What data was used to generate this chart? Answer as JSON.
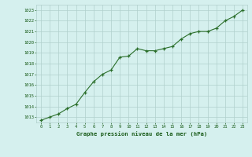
{
  "x": [
    0,
    1,
    2,
    3,
    4,
    5,
    6,
    7,
    8,
    9,
    10,
    11,
    12,
    13,
    14,
    15,
    16,
    17,
    18,
    19,
    20,
    21,
    22,
    23
  ],
  "y": [
    1012.7,
    1013.0,
    1013.3,
    1013.8,
    1014.2,
    1015.3,
    1016.3,
    1017.0,
    1017.4,
    1018.6,
    1018.7,
    1019.4,
    1019.2,
    1019.2,
    1019.4,
    1019.6,
    1020.3,
    1020.8,
    1021.0,
    1021.0,
    1021.3,
    1022.0,
    1022.4,
    1023.0
  ],
  "line_color": "#2a6e2a",
  "marker_color": "#2a6e2a",
  "bg_color": "#d5f0ee",
  "grid_color": "#b0d0cc",
  "text_color": "#1a5c1a",
  "title": "Graphe pression niveau de la mer (hPa)",
  "ylim_min": 1012.5,
  "ylim_max": 1023.5,
  "xlim_min": -0.5,
  "xlim_max": 23.5,
  "yticks": [
    1013,
    1014,
    1015,
    1016,
    1017,
    1018,
    1019,
    1020,
    1021,
    1022,
    1023
  ],
  "xticks": [
    0,
    1,
    2,
    3,
    4,
    5,
    6,
    7,
    8,
    9,
    10,
    11,
    12,
    13,
    14,
    15,
    16,
    17,
    18,
    19,
    20,
    21,
    22,
    23
  ]
}
